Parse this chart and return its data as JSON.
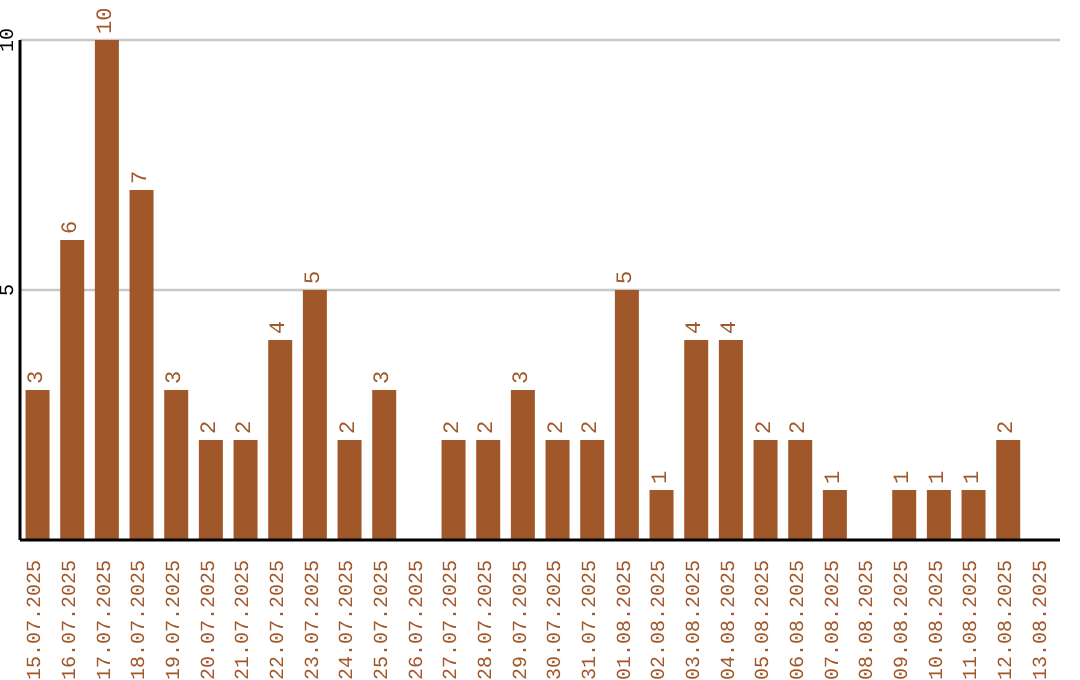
{
  "chart_data": {
    "type": "bar",
    "categories": [
      "15.07.2025",
      "16.07.2025",
      "17.07.2025",
      "18.07.2025",
      "19.07.2025",
      "20.07.2025",
      "21.07.2025",
      "22.07.2025",
      "23.07.2025",
      "24.07.2025",
      "25.07.2025",
      "26.07.2025",
      "27.07.2025",
      "28.07.2025",
      "29.07.2025",
      "30.07.2025",
      "31.07.2025",
      "01.08.2025",
      "02.08.2025",
      "03.08.2025",
      "04.08.2025",
      "05.08.2025",
      "06.08.2025",
      "07.08.2025",
      "08.08.2025",
      "09.08.2025",
      "10.08.2025",
      "11.08.2025",
      "12.08.2025",
      "13.08.2025"
    ],
    "values": [
      3,
      6,
      10,
      7,
      3,
      2,
      2,
      4,
      5,
      2,
      3,
      0,
      2,
      2,
      3,
      2,
      2,
      5,
      1,
      4,
      4,
      2,
      2,
      1,
      0,
      1,
      1,
      1,
      2,
      0
    ],
    "value_labels": [
      "3",
      "6",
      "10",
      "7",
      "3",
      "2",
      "2",
      "4",
      "5",
      "2",
      "3",
      null,
      "2",
      "2",
      "3",
      "2",
      "2",
      "5",
      "1",
      "4",
      "4",
      "2",
      "2",
      "1",
      null,
      "1",
      "1",
      "1",
      "2",
      null
    ],
    "color": "#a0572a",
    "ylim": [
      0,
      10
    ],
    "yticks": [
      5,
      10
    ],
    "grid": "y"
  }
}
